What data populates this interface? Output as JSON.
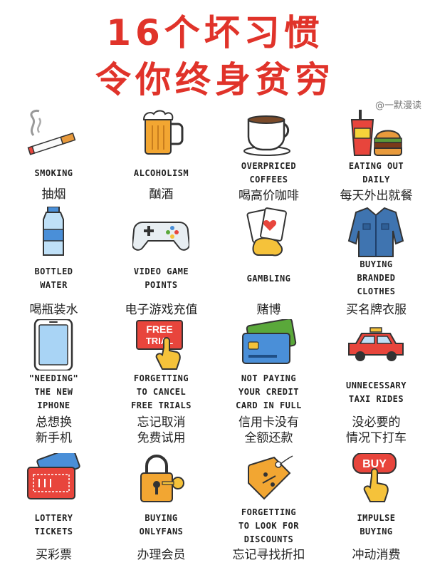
{
  "title": {
    "line1": "16个坏习惯",
    "line2": "令你终身贫穷"
  },
  "watermark": "@一默漫读",
  "habits": [
    {
      "en": "SMOKING",
      "zh": "抽烟",
      "icon": "cigarette-icon"
    },
    {
      "en": "ALCOHOLISM",
      "zh": "酗酒",
      "icon": "beer-mug-icon"
    },
    {
      "en": "OVERPRICED\nCOFFEES",
      "zh": "喝高价咖啡",
      "icon": "coffee-cup-icon"
    },
    {
      "en": "EATING OUT\nDAILY",
      "zh": "每天外出就餐",
      "icon": "fast-food-icon"
    },
    {
      "en": "BOTTLED\nWATER",
      "zh": "喝瓶装水",
      "icon": "water-bottle-icon"
    },
    {
      "en": "VIDEO GAME\nPOINTS",
      "zh": "电子游戏充值",
      "icon": "game-controller-icon"
    },
    {
      "en": "GAMBLING",
      "zh": "赌博",
      "icon": "playing-cards-icon"
    },
    {
      "en": "BUYING\nBRANDED\nCLOTHES",
      "zh": "买名牌衣服",
      "icon": "denim-jacket-icon"
    },
    {
      "en": "\"NEEDING\"\nTHE NEW\nIPHONE",
      "zh": "总想换\n新手机",
      "icon": "smartphone-icon"
    },
    {
      "en": "FORGETTING\nTO CANCEL\nFREE TRIALS",
      "zh": "忘记取消\n免费试用",
      "icon": "free-trial-icon",
      "sign": "FREE\nTRIAL"
    },
    {
      "en": "NOT PAYING\nYOUR CREDIT\nCARD IN FULL",
      "zh": "信用卡没有\n全额还款",
      "icon": "credit-card-icon"
    },
    {
      "en": "UNNECESSARY\nTAXI RIDES",
      "zh": "没必要的\n情况下打车",
      "icon": "taxi-icon"
    },
    {
      "en": "LOTTERY\nTICKETS",
      "zh": "买彩票",
      "icon": "lottery-ticket-icon"
    },
    {
      "en": "BUYING\nONLYFANS",
      "zh": "办理会员",
      "icon": "padlock-key-icon"
    },
    {
      "en": "FORGETTING\nTO LOOK FOR\nDISCOUNTS",
      "zh": "忘记寻找折扣",
      "icon": "discount-tag-icon"
    },
    {
      "en": "IMPULSE\nBUYING",
      "zh": "冲动消费",
      "icon": "buy-button-icon",
      "sign": "BUY"
    }
  ]
}
